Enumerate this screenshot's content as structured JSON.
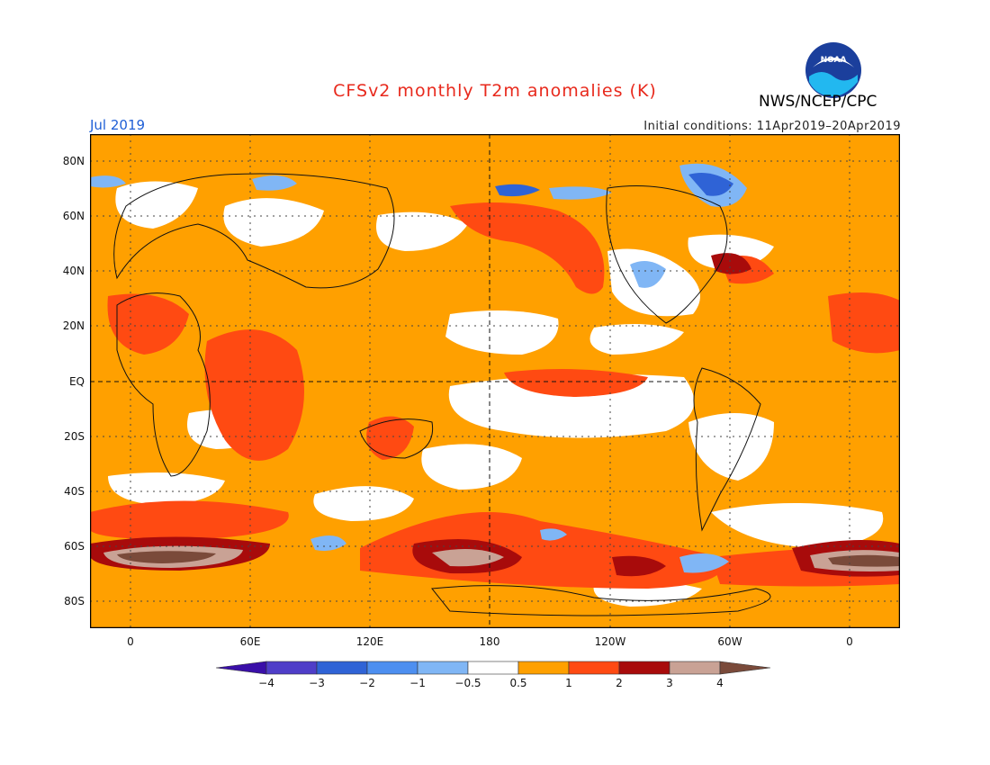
{
  "header": {
    "title": "CFSv2 monthly T2m anomalies (K)",
    "org": "NWS/NCEP/CPC",
    "logo_text": "NOAA",
    "month": "Jul 2019",
    "initial_conditions": "Initial conditions: 11Apr2019–20Apr2019"
  },
  "map": {
    "lat_labels": [
      "80N",
      "60N",
      "40N",
      "20N",
      "EQ",
      "20S",
      "40S",
      "60S",
      "80S"
    ],
    "lon_labels": [
      "0",
      "60E",
      "120E",
      "180",
      "120W",
      "60W",
      "0"
    ]
  },
  "colorbar": {
    "labels": [
      "−4",
      "−3",
      "−2",
      "−1",
      "−0.5",
      "0.5",
      "1",
      "2",
      "3",
      "4"
    ],
    "colors": [
      "#3a0fa8",
      "#4f3ec8",
      "#2f63d6",
      "#4d8ff0",
      "#80b6f5",
      "#ffffff",
      "#ffa000",
      "#ff4a12",
      "#a80b0b",
      "#c9a295",
      "#7a4a3a"
    ]
  }
}
